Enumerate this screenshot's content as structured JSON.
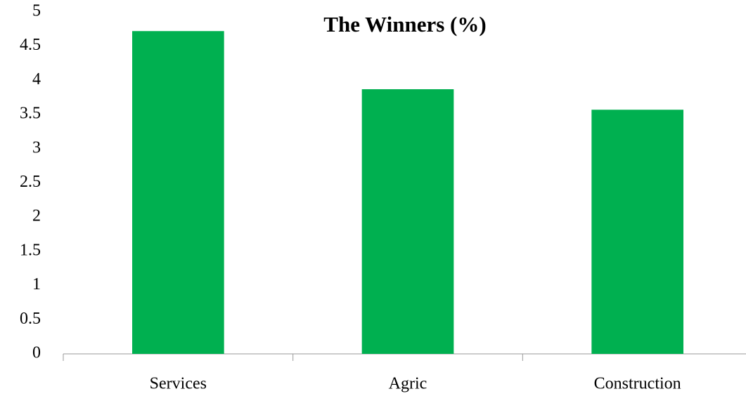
{
  "chart_data": {
    "type": "bar",
    "title": "The Winners (%)",
    "categories": [
      "Services",
      "Agric",
      "Construction"
    ],
    "values": [
      4.72,
      3.87,
      3.57
    ],
    "color": "#00b050",
    "ylim": [
      0,
      5
    ],
    "yticks": [
      0,
      0.5,
      1,
      1.5,
      2,
      2.5,
      3,
      3.5,
      4,
      4.5,
      5
    ],
    "grid": false
  }
}
